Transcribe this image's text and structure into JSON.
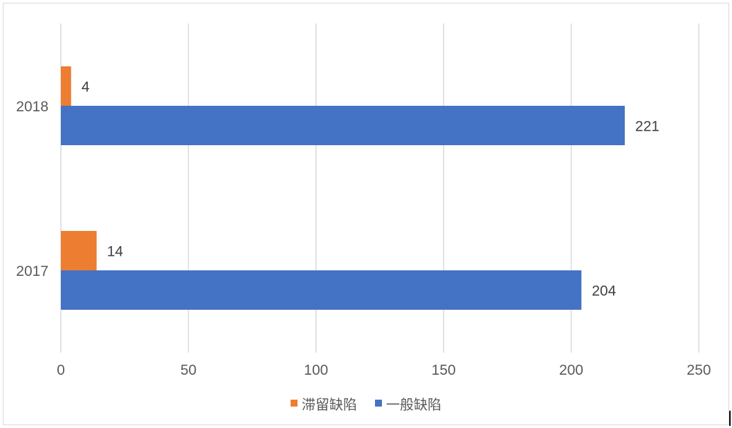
{
  "chart_data": {
    "type": "bar",
    "orientation": "horizontal",
    "categories": [
      "2017",
      "2018"
    ],
    "series": [
      {
        "name": "滞留缺陷",
        "values": [
          14,
          4
        ],
        "color": "#ED7D31"
      },
      {
        "name": "一般缺陷",
        "values": [
          204,
          221
        ],
        "color": "#4472C4"
      }
    ],
    "x_ticks": [
      0,
      50,
      100,
      150,
      200,
      250
    ],
    "xlim": [
      0,
      250
    ],
    "grid": "vertical",
    "legend_position": "bottom",
    "data_labels": true
  }
}
